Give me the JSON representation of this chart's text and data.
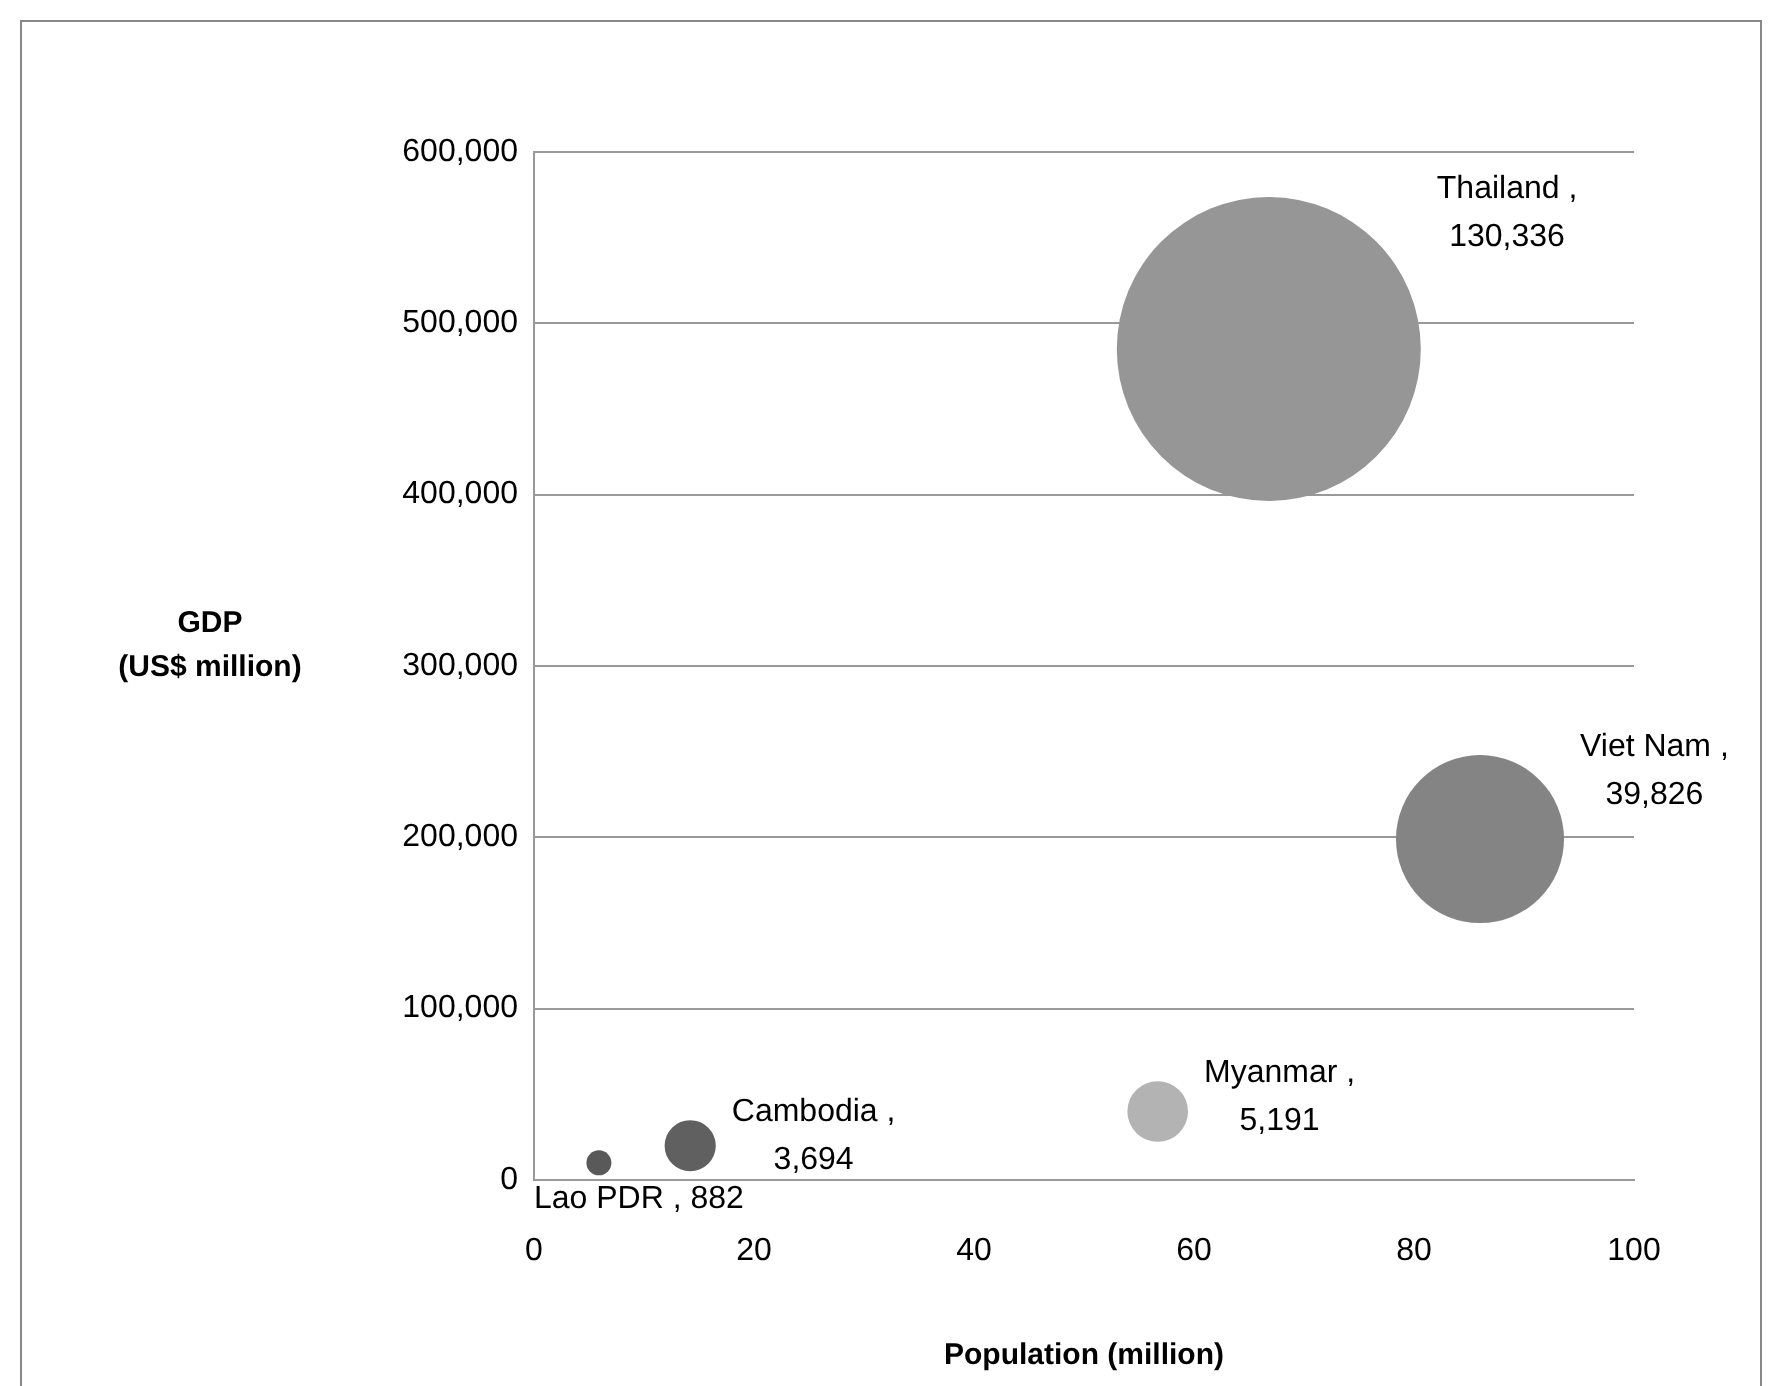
{
  "chart_data": {
    "type": "bubble",
    "xlabel": "Population (million)",
    "ylabel": "GDP\n(US$ million)",
    "xlim": [
      0,
      100
    ],
    "xticks": [
      0,
      20,
      40,
      60,
      80,
      100
    ],
    "ylim": [
      0,
      600000
    ],
    "yticks": [
      0,
      {
        "value": 100000,
        "label": "100,000"
      },
      {
        "value": 200000,
        "label": "200,000"
      },
      {
        "value": 300000,
        "label": "300,000"
      },
      {
        "value": 400000,
        "label": "400,000"
      },
      {
        "value": 500000,
        "label": "500,000"
      },
      {
        "value": 600000,
        "label": "600,000"
      }
    ],
    "grid": "y",
    "legend": false,
    "series": [
      {
        "name": "Thailand ,",
        "color": "#969696",
        "x": [
          66.8
        ],
        "values": [
          485000
        ],
        "sizes": [
          130336
        ],
        "value_labels": [
          "130,336"
        ]
      },
      {
        "name": "Viet Nam ,",
        "color": "#848484",
        "x": [
          86
        ],
        "values": [
          199000
        ],
        "sizes": [
          39826
        ],
        "value_labels": [
          "39,826"
        ]
      },
      {
        "name": "Cambodia ,",
        "color": "#606060",
        "x": [
          14.2
        ],
        "values": [
          20000
        ],
        "sizes": [
          3694
        ],
        "value_labels": [
          "3,694"
        ]
      },
      {
        "name": "Myanmar ,",
        "color": "#b3b3b3",
        "x": [
          56.7
        ],
        "values": [
          40000
        ],
        "sizes": [
          5191
        ],
        "value_labels": [
          "5,191"
        ]
      },
      {
        "name": "Lao PDR ,",
        "color": "#595959",
        "x": [
          5.9
        ],
        "values": [
          10000
        ],
        "sizes": [
          882
        ],
        "value_labels": [
          "882"
        ]
      }
    ]
  }
}
